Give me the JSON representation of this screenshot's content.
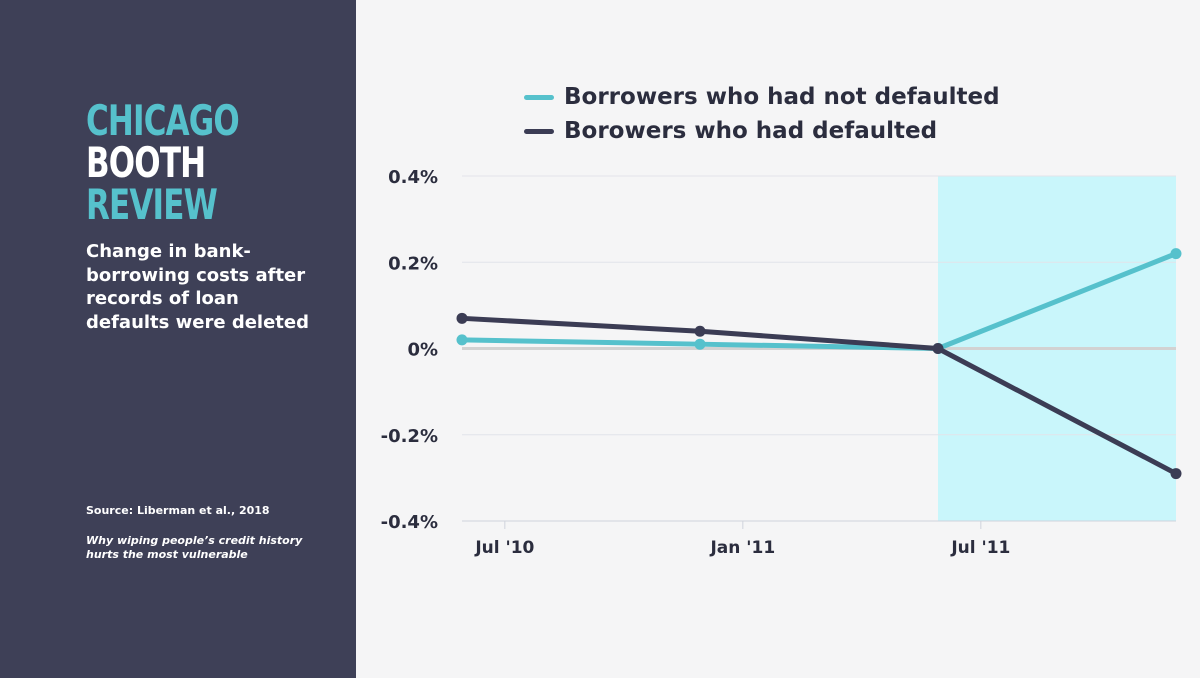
{
  "brand": {
    "line1": "CHICAGO",
    "line2": "BOOTH",
    "line3": "REVIEW",
    "accent_color": "#56c1cc",
    "text_color": "#ffffff"
  },
  "subtitle": "Change in bank-borrowing costs after records of loan defaults were deleted",
  "source": "Source: Liberman et al., 2018",
  "tagline": "Why wiping people’s credit history hurts the most vulnerable",
  "colors": {
    "sidebar": "#3e4057",
    "series_not_defaulted": "#56c1cc",
    "series_defaulted": "#3b3c54",
    "highlight": "#c9f6fb"
  },
  "chart_data": {
    "type": "line",
    "title": "",
    "xlabel": "",
    "ylabel": "",
    "x_ticks": [
      "Jul '10",
      "Jan '11",
      "Jul '11"
    ],
    "y_ticks": [
      "0.4%",
      "0.2%",
      "0%",
      "-0.2%",
      "-0.4%"
    ],
    "ylim": [
      -0.4,
      0.4
    ],
    "x": [
      0,
      1,
      2,
      3
    ],
    "xlim": [
      0,
      3
    ],
    "x_tick_positions": [
      0.18,
      1.18,
      2.18
    ],
    "highlight_x_range": [
      2,
      3
    ],
    "series": [
      {
        "name": "Borrowers who had not defaulted",
        "color": "#56c1cc",
        "values": [
          0.02,
          0.01,
          0.0,
          0.22
        ]
      },
      {
        "name": "Borowers who had defaulted",
        "color": "#3b3c54",
        "values": [
          0.07,
          0.04,
          0.0,
          -0.29
        ]
      }
    ]
  }
}
